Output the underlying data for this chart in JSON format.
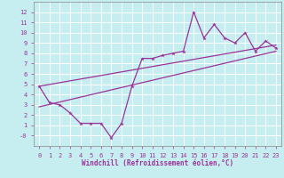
{
  "xlabel": "Windchill (Refroidissement éolien,°C)",
  "bg_color": "#c6eef0",
  "line_color": "#993399",
  "grid_color": "#ffffff",
  "x_data": [
    0,
    1,
    2,
    3,
    4,
    5,
    6,
    7,
    8,
    9,
    10,
    11,
    12,
    13,
    14,
    15,
    16,
    17,
    18,
    19,
    20,
    21,
    22,
    23
  ],
  "y_main": [
    4.8,
    3.2,
    3.0,
    2.2,
    1.2,
    1.2,
    1.2,
    -0.2,
    1.2,
    4.8,
    7.5,
    7.5,
    7.8,
    8.0,
    8.2,
    12.0,
    9.5,
    10.8,
    9.5,
    9.0,
    10.0,
    8.2,
    9.2,
    8.5
  ],
  "upper_start": 4.8,
  "upper_end": 8.8,
  "lower_start": 2.8,
  "lower_end": 8.2,
  "xlim": [
    -0.5,
    23.5
  ],
  "ylim": [
    -1.0,
    13.0
  ],
  "yticks": [
    0,
    1,
    2,
    3,
    4,
    5,
    6,
    7,
    8,
    9,
    10,
    11,
    12
  ],
  "xticks": [
    0,
    1,
    2,
    3,
    4,
    5,
    6,
    7,
    8,
    9,
    10,
    11,
    12,
    13,
    14,
    15,
    16,
    17,
    18,
    19,
    20,
    21,
    22,
    23
  ],
  "ylabel_neg0": true
}
